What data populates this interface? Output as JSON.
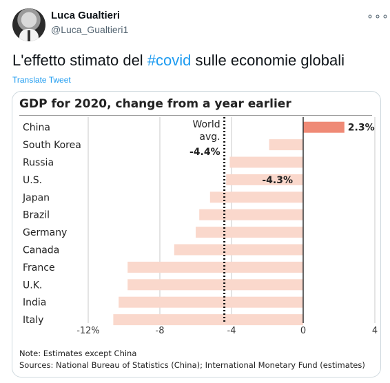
{
  "tweet": {
    "author_name": "Luca Gualtieri",
    "author_handle": "@Luca_Gualtieri1",
    "more_label": "∘∘∘",
    "text_before": "L'effetto stimato del ",
    "hashtag": "#covid",
    "text_after": " sulle economie globali",
    "translate_label": "Translate Tweet"
  },
  "card": {
    "note": "Note: Estimates except China",
    "sources": "Sources: National Bureau of Statistics (China); International Monetary Fund (estimates)"
  },
  "colors": {
    "accent": "#1d9bf0",
    "bar": "#fad8cc",
    "highlight_bar": "#ef8a76"
  },
  "chart_data": {
    "type": "bar",
    "orientation": "horizontal",
    "title": "GDP for 2020, change from a year earlier",
    "categories": [
      "China",
      "South Korea",
      "Russia",
      "U.S.",
      "Japan",
      "Brazil",
      "Germany",
      "Canada",
      "France",
      "U.K.",
      "India",
      "Italy"
    ],
    "values": [
      2.3,
      -1.9,
      -4.1,
      -4.3,
      -5.2,
      -5.8,
      -6.0,
      -7.2,
      -9.8,
      -9.8,
      -10.3,
      -10.6
    ],
    "value_labels": [
      {
        "index": 0,
        "text": "2.3%"
      },
      {
        "index": 3,
        "text": "-4.3%"
      }
    ],
    "xlim": [
      -12,
      4
    ],
    "xticks": [
      -12,
      -8,
      -4,
      0,
      4
    ],
    "xtick_labels": [
      "-12%",
      "-8",
      "-4",
      "0",
      "4"
    ],
    "reference_line": {
      "value": -4.4,
      "label_lines": [
        "World",
        "avg."
      ],
      "value_label": "-4.4%"
    },
    "grid": true
  }
}
